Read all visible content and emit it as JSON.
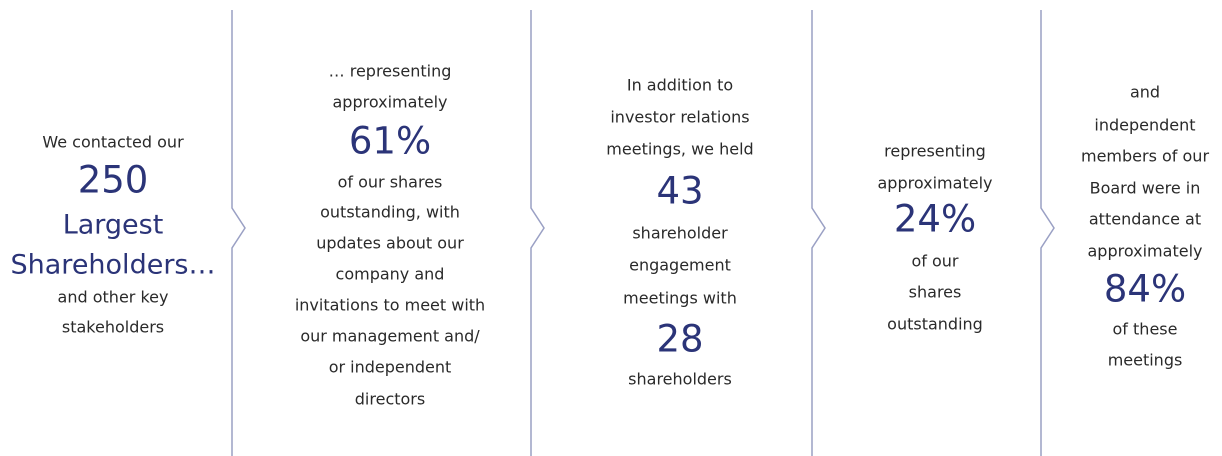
{
  "columns": [
    {
      "lines": [
        "We contacted our",
        "250",
        "Largest",
        "Shareholders…",
        "and other key",
        "stakeholders"
      ]
    },
    {
      "lines": [
        "… representing",
        "approximately",
        "61%",
        "of our shares",
        "outstanding, with",
        "updates about our",
        "company and",
        "invitations to meet with",
        "our management and/",
        "or independent",
        "directors"
      ]
    },
    {
      "lines": [
        "In addition to",
        "investor relations",
        "meetings, we held",
        "43",
        "shareholder",
        "engagement",
        "meetings with",
        "28",
        "shareholders"
      ]
    },
    {
      "lines": [
        "representing",
        "approximately",
        "24%",
        "of our",
        "shares",
        "outstanding"
      ]
    },
    {
      "lines": [
        "and",
        "independent",
        "members of our",
        "Board were in",
        "attendance at",
        "approximately",
        "84%",
        "of these",
        "meetings"
      ]
    }
  ]
}
